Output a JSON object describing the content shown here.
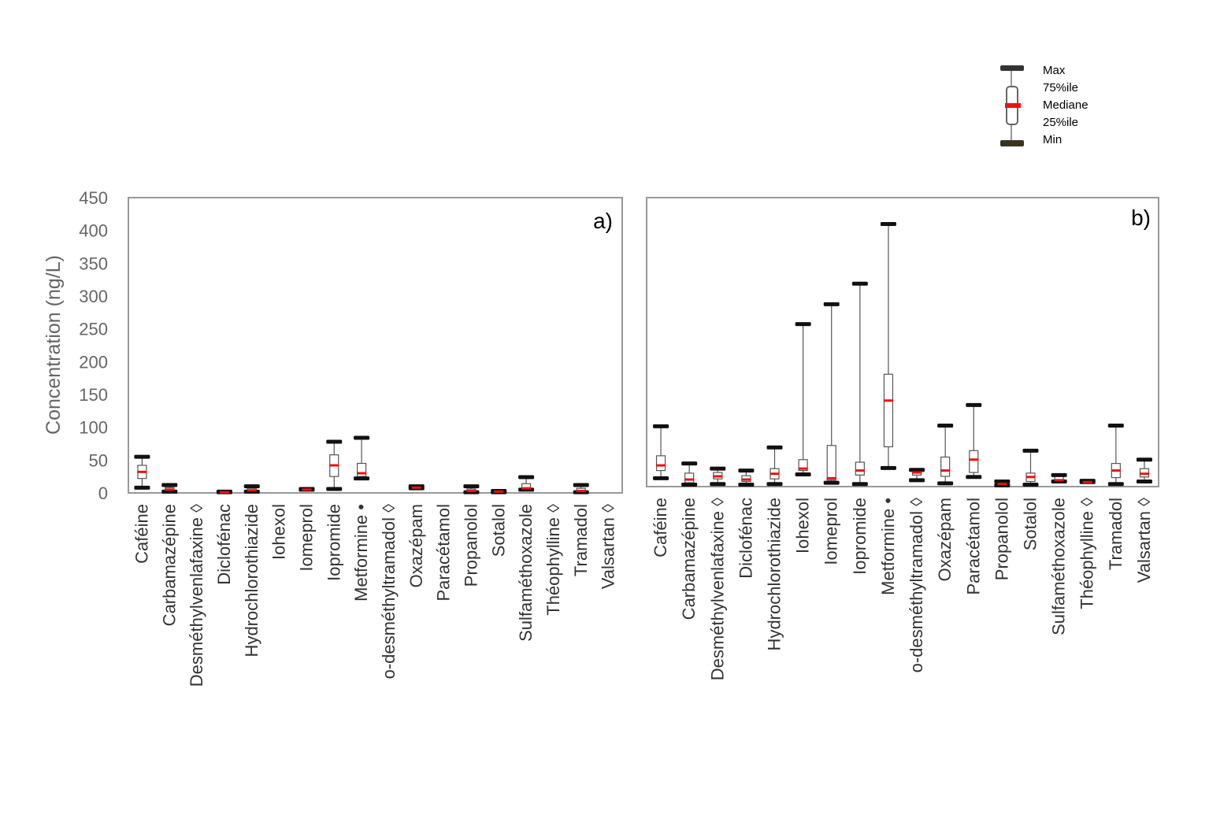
{
  "legend": {
    "max": "Max",
    "p75": "75%ile",
    "median": "Mediane",
    "p25": "25%ile",
    "min": "Min"
  },
  "colors": {
    "whisker_cap": "#111111",
    "min_cap_legend": "#3a3220",
    "median": "#ee1111",
    "box_line": "#555555",
    "frame": "#999999",
    "axis_text": "#666666"
  },
  "chart_data": [
    {
      "type": "boxplot",
      "panel_label": "a)",
      "ylabel": "Concentration (ng/L)",
      "ylim": [
        0,
        450
      ],
      "yticks": [
        0,
        50,
        100,
        150,
        200,
        250,
        300,
        350,
        400,
        450
      ],
      "grid": false,
      "categories": [
        "Caféine",
        "Carbamazépine",
        "Desméthylvenlafaxine ◊",
        "Diclofénac",
        "Hydrochlorothiazide",
        "Iohexol",
        "Iomeprol",
        "Iopromide",
        "Metformine •",
        "o-desméthyltramadol ◊",
        "Oxazépam",
        "Paracétamol",
        "Propanolol",
        "Sotalol",
        "Sulfaméthoxazole",
        "Théophylline ◊",
        "Tramadol",
        "Valsartan ◊"
      ],
      "boxes": [
        {
          "min": 8,
          "q1": 22,
          "median": 32,
          "q3": 42,
          "max": 55
        },
        {
          "min": 2,
          "q1": 3,
          "median": 5,
          "q3": 8,
          "max": 12
        },
        null,
        {
          "min": 1,
          "q1": 1,
          "median": 1,
          "q3": 2,
          "max": 2
        },
        {
          "min": 2,
          "q1": 3,
          "median": 4,
          "q3": 7,
          "max": 10
        },
        null,
        {
          "min": 5,
          "q1": 5,
          "median": 5,
          "q3": 6,
          "max": 6
        },
        {
          "min": 6,
          "q1": 25,
          "median": 42,
          "q3": 58,
          "max": 78
        },
        {
          "min": 22,
          "q1": 25,
          "median": 30,
          "q3": 45,
          "max": 84
        },
        null,
        {
          "min": 7,
          "q1": 7,
          "median": 8,
          "q3": 10,
          "max": 10
        },
        null,
        {
          "min": 1,
          "q1": 2,
          "median": 3,
          "q3": 6,
          "max": 10
        },
        {
          "min": 1,
          "q1": 1,
          "median": 2,
          "q3": 2,
          "max": 3
        },
        {
          "min": 5,
          "q1": 6,
          "median": 7,
          "q3": 14,
          "max": 24
        },
        null,
        {
          "min": 1,
          "q1": 2,
          "median": 3,
          "q3": 7,
          "max": 12
        },
        null
      ]
    },
    {
      "type": "boxplot",
      "panel_label": "b)",
      "ylim": [
        0,
        450
      ],
      "grid": false,
      "categories": [
        "Caféine",
        "Carbamazépine",
        "Desméthylvenlafaxine ◊",
        "Diclofénac",
        "Hydrochlorothiazide",
        "Iohexol",
        "Iomeprol",
        "Iopromide",
        "Metformine •",
        "o-desméthyltramadol ◊",
        "Oxazépam",
        "Paracétamol",
        "Propanolol",
        "Sotalol",
        "Sulfaméthoxazole",
        "Théophylline ◊",
        "Tramadol",
        "Valsartan ◊"
      ],
      "boxes": [
        {
          "min": 13,
          "q1": 25,
          "median": 33,
          "q3": 48,
          "max": 94
        },
        {
          "min": 3,
          "q1": 6,
          "median": 11,
          "q3": 21,
          "max": 36
        },
        {
          "min": 4,
          "q1": 12,
          "median": 16,
          "q3": 22,
          "max": 28
        },
        {
          "min": 3,
          "q1": 8,
          "median": 11,
          "q3": 17,
          "max": 25
        },
        {
          "min": 4,
          "q1": 12,
          "median": 20,
          "q3": 28,
          "max": 61
        },
        {
          "min": 19,
          "q1": 25,
          "median": 28,
          "q3": 42,
          "max": 253
        },
        {
          "min": 6,
          "q1": 10,
          "median": 13,
          "q3": 64,
          "max": 284
        },
        {
          "min": 4,
          "q1": 18,
          "median": 25,
          "q3": 38,
          "max": 316
        },
        {
          "min": 29,
          "q1": 62,
          "median": 134,
          "q3": 175,
          "max": 409
        },
        {
          "min": 10,
          "q1": 18,
          "median": 22,
          "q3": 26,
          "max": 26
        },
        {
          "min": 5,
          "q1": 16,
          "median": 25,
          "q3": 46,
          "max": 95
        },
        {
          "min": 15,
          "q1": 22,
          "median": 42,
          "q3": 56,
          "max": 127
        },
        {
          "min": 2,
          "q1": 3,
          "median": 4,
          "q3": 6,
          "max": 8
        },
        {
          "min": 3,
          "q1": 8,
          "median": 15,
          "q3": 21,
          "max": 56
        },
        {
          "min": 8,
          "q1": 10,
          "median": 10,
          "q3": 16,
          "max": 18
        },
        {
          "min": 7,
          "q1": 7,
          "median": 7,
          "q3": 8,
          "max": 9
        },
        {
          "min": 4,
          "q1": 14,
          "median": 25,
          "q3": 36,
          "max": 95
        },
        {
          "min": 8,
          "q1": 15,
          "median": 20,
          "q3": 28,
          "max": 42
        }
      ]
    }
  ]
}
